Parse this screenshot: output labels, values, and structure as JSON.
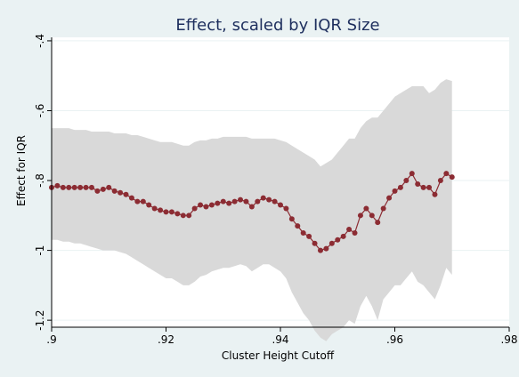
{
  "chart_data": {
    "type": "line",
    "title": "Effect, scaled by IQR Size",
    "xlabel": "Cluster Height Cutoff",
    "ylabel": "Effect for IQR",
    "xlim": [
      0.9,
      0.98
    ],
    "ylim": [
      -1.22,
      -0.39
    ],
    "x_ticks": [
      {
        "value": 0.9,
        "label": ".9"
      },
      {
        "value": 0.92,
        "label": ".92"
      },
      {
        "value": 0.94,
        "label": ".94"
      },
      {
        "value": 0.96,
        "label": ".96"
      },
      {
        "value": 0.98,
        "label": ".98"
      }
    ],
    "y_ticks": [
      {
        "value": -0.4,
        "label": "-.4"
      },
      {
        "value": -0.6,
        "label": "-.6"
      },
      {
        "value": -0.8,
        "label": "-.8"
      },
      {
        "value": -1.0,
        "label": "-1"
      },
      {
        "value": -1.2,
        "label": "-1.2"
      }
    ],
    "grid": "horizontal",
    "colors": {
      "background": "#eaf2f3",
      "plot_area": "#ffffff",
      "line": "#8c2c33",
      "band": "#d9d9d9",
      "grid": "#eaf2f3",
      "title": "#1e2f5e"
    },
    "series": [
      {
        "x": [
          0.9,
          0.901,
          0.902,
          0.903,
          0.904,
          0.905,
          0.906,
          0.907,
          0.908,
          0.909,
          0.91,
          0.911,
          0.912,
          0.913,
          0.914,
          0.915,
          0.916,
          0.917,
          0.918,
          0.919,
          0.92,
          0.921,
          0.922,
          0.923,
          0.924,
          0.925,
          0.926,
          0.927,
          0.928,
          0.929,
          0.93,
          0.931,
          0.932,
          0.933,
          0.934,
          0.935,
          0.936,
          0.937,
          0.938,
          0.939,
          0.94,
          0.941,
          0.942,
          0.943,
          0.944,
          0.945,
          0.946,
          0.947,
          0.948,
          0.949,
          0.95,
          0.951,
          0.952,
          0.953,
          0.954,
          0.955,
          0.956,
          0.957,
          0.958,
          0.959,
          0.96,
          0.961,
          0.962,
          0.963,
          0.964,
          0.965,
          0.966,
          0.967,
          0.968,
          0.969,
          0.97
        ],
        "y": [
          -0.82,
          -0.815,
          -0.82,
          -0.82,
          -0.82,
          -0.82,
          -0.82,
          -0.82,
          -0.83,
          -0.825,
          -0.82,
          -0.83,
          -0.835,
          -0.84,
          -0.85,
          -0.86,
          -0.86,
          -0.87,
          -0.88,
          -0.885,
          -0.89,
          -0.89,
          -0.895,
          -0.9,
          -0.9,
          -0.88,
          -0.87,
          -0.875,
          -0.87,
          -0.865,
          -0.86,
          -0.865,
          -0.86,
          -0.855,
          -0.86,
          -0.875,
          -0.86,
          -0.85,
          -0.855,
          -0.86,
          -0.87,
          -0.88,
          -0.91,
          -0.93,
          -0.95,
          -0.96,
          -0.98,
          -1.0,
          -0.995,
          -0.98,
          -0.97,
          -0.96,
          -0.94,
          -0.95,
          -0.9,
          -0.88,
          -0.9,
          -0.92,
          -0.88,
          -0.85,
          -0.83,
          -0.82,
          -0.8,
          -0.78,
          -0.81,
          -0.82,
          -0.82,
          -0.84,
          -0.8,
          -0.78,
          -0.79
        ],
        "upper": [
          -0.65,
          -0.65,
          -0.65,
          -0.65,
          -0.655,
          -0.655,
          -0.655,
          -0.66,
          -0.66,
          -0.66,
          -0.66,
          -0.665,
          -0.665,
          -0.665,
          -0.67,
          -0.67,
          -0.675,
          -0.68,
          -0.685,
          -0.69,
          -0.69,
          -0.69,
          -0.695,
          -0.7,
          -0.7,
          -0.69,
          -0.685,
          -0.685,
          -0.68,
          -0.68,
          -0.675,
          -0.675,
          -0.675,
          -0.675,
          -0.675,
          -0.68,
          -0.68,
          -0.68,
          -0.68,
          -0.68,
          -0.685,
          -0.69,
          -0.7,
          -0.71,
          -0.72,
          -0.73,
          -0.74,
          -0.76,
          -0.75,
          -0.74,
          -0.72,
          -0.7,
          -0.68,
          -0.68,
          -0.65,
          -0.63,
          -0.62,
          -0.62,
          -0.6,
          -0.58,
          -0.56,
          -0.55,
          -0.54,
          -0.53,
          -0.53,
          -0.53,
          -0.55,
          -0.54,
          -0.52,
          -0.51,
          -0.515
        ],
        "lower": [
          -0.97,
          -0.97,
          -0.975,
          -0.975,
          -0.98,
          -0.98,
          -0.985,
          -0.99,
          -0.995,
          -1.0,
          -1.0,
          -1.0,
          -1.005,
          -1.01,
          -1.02,
          -1.03,
          -1.04,
          -1.05,
          -1.06,
          -1.07,
          -1.08,
          -1.08,
          -1.09,
          -1.1,
          -1.1,
          -1.09,
          -1.075,
          -1.07,
          -1.06,
          -1.055,
          -1.05,
          -1.05,
          -1.045,
          -1.04,
          -1.045,
          -1.06,
          -1.05,
          -1.04,
          -1.04,
          -1.05,
          -1.06,
          -1.08,
          -1.12,
          -1.15,
          -1.18,
          -1.2,
          -1.23,
          -1.25,
          -1.26,
          -1.24,
          -1.23,
          -1.22,
          -1.2,
          -1.21,
          -1.16,
          -1.13,
          -1.16,
          -1.2,
          -1.14,
          -1.12,
          -1.1,
          -1.1,
          -1.08,
          -1.06,
          -1.09,
          -1.1,
          -1.12,
          -1.14,
          -1.1,
          -1.05,
          -1.07
        ]
      }
    ]
  }
}
